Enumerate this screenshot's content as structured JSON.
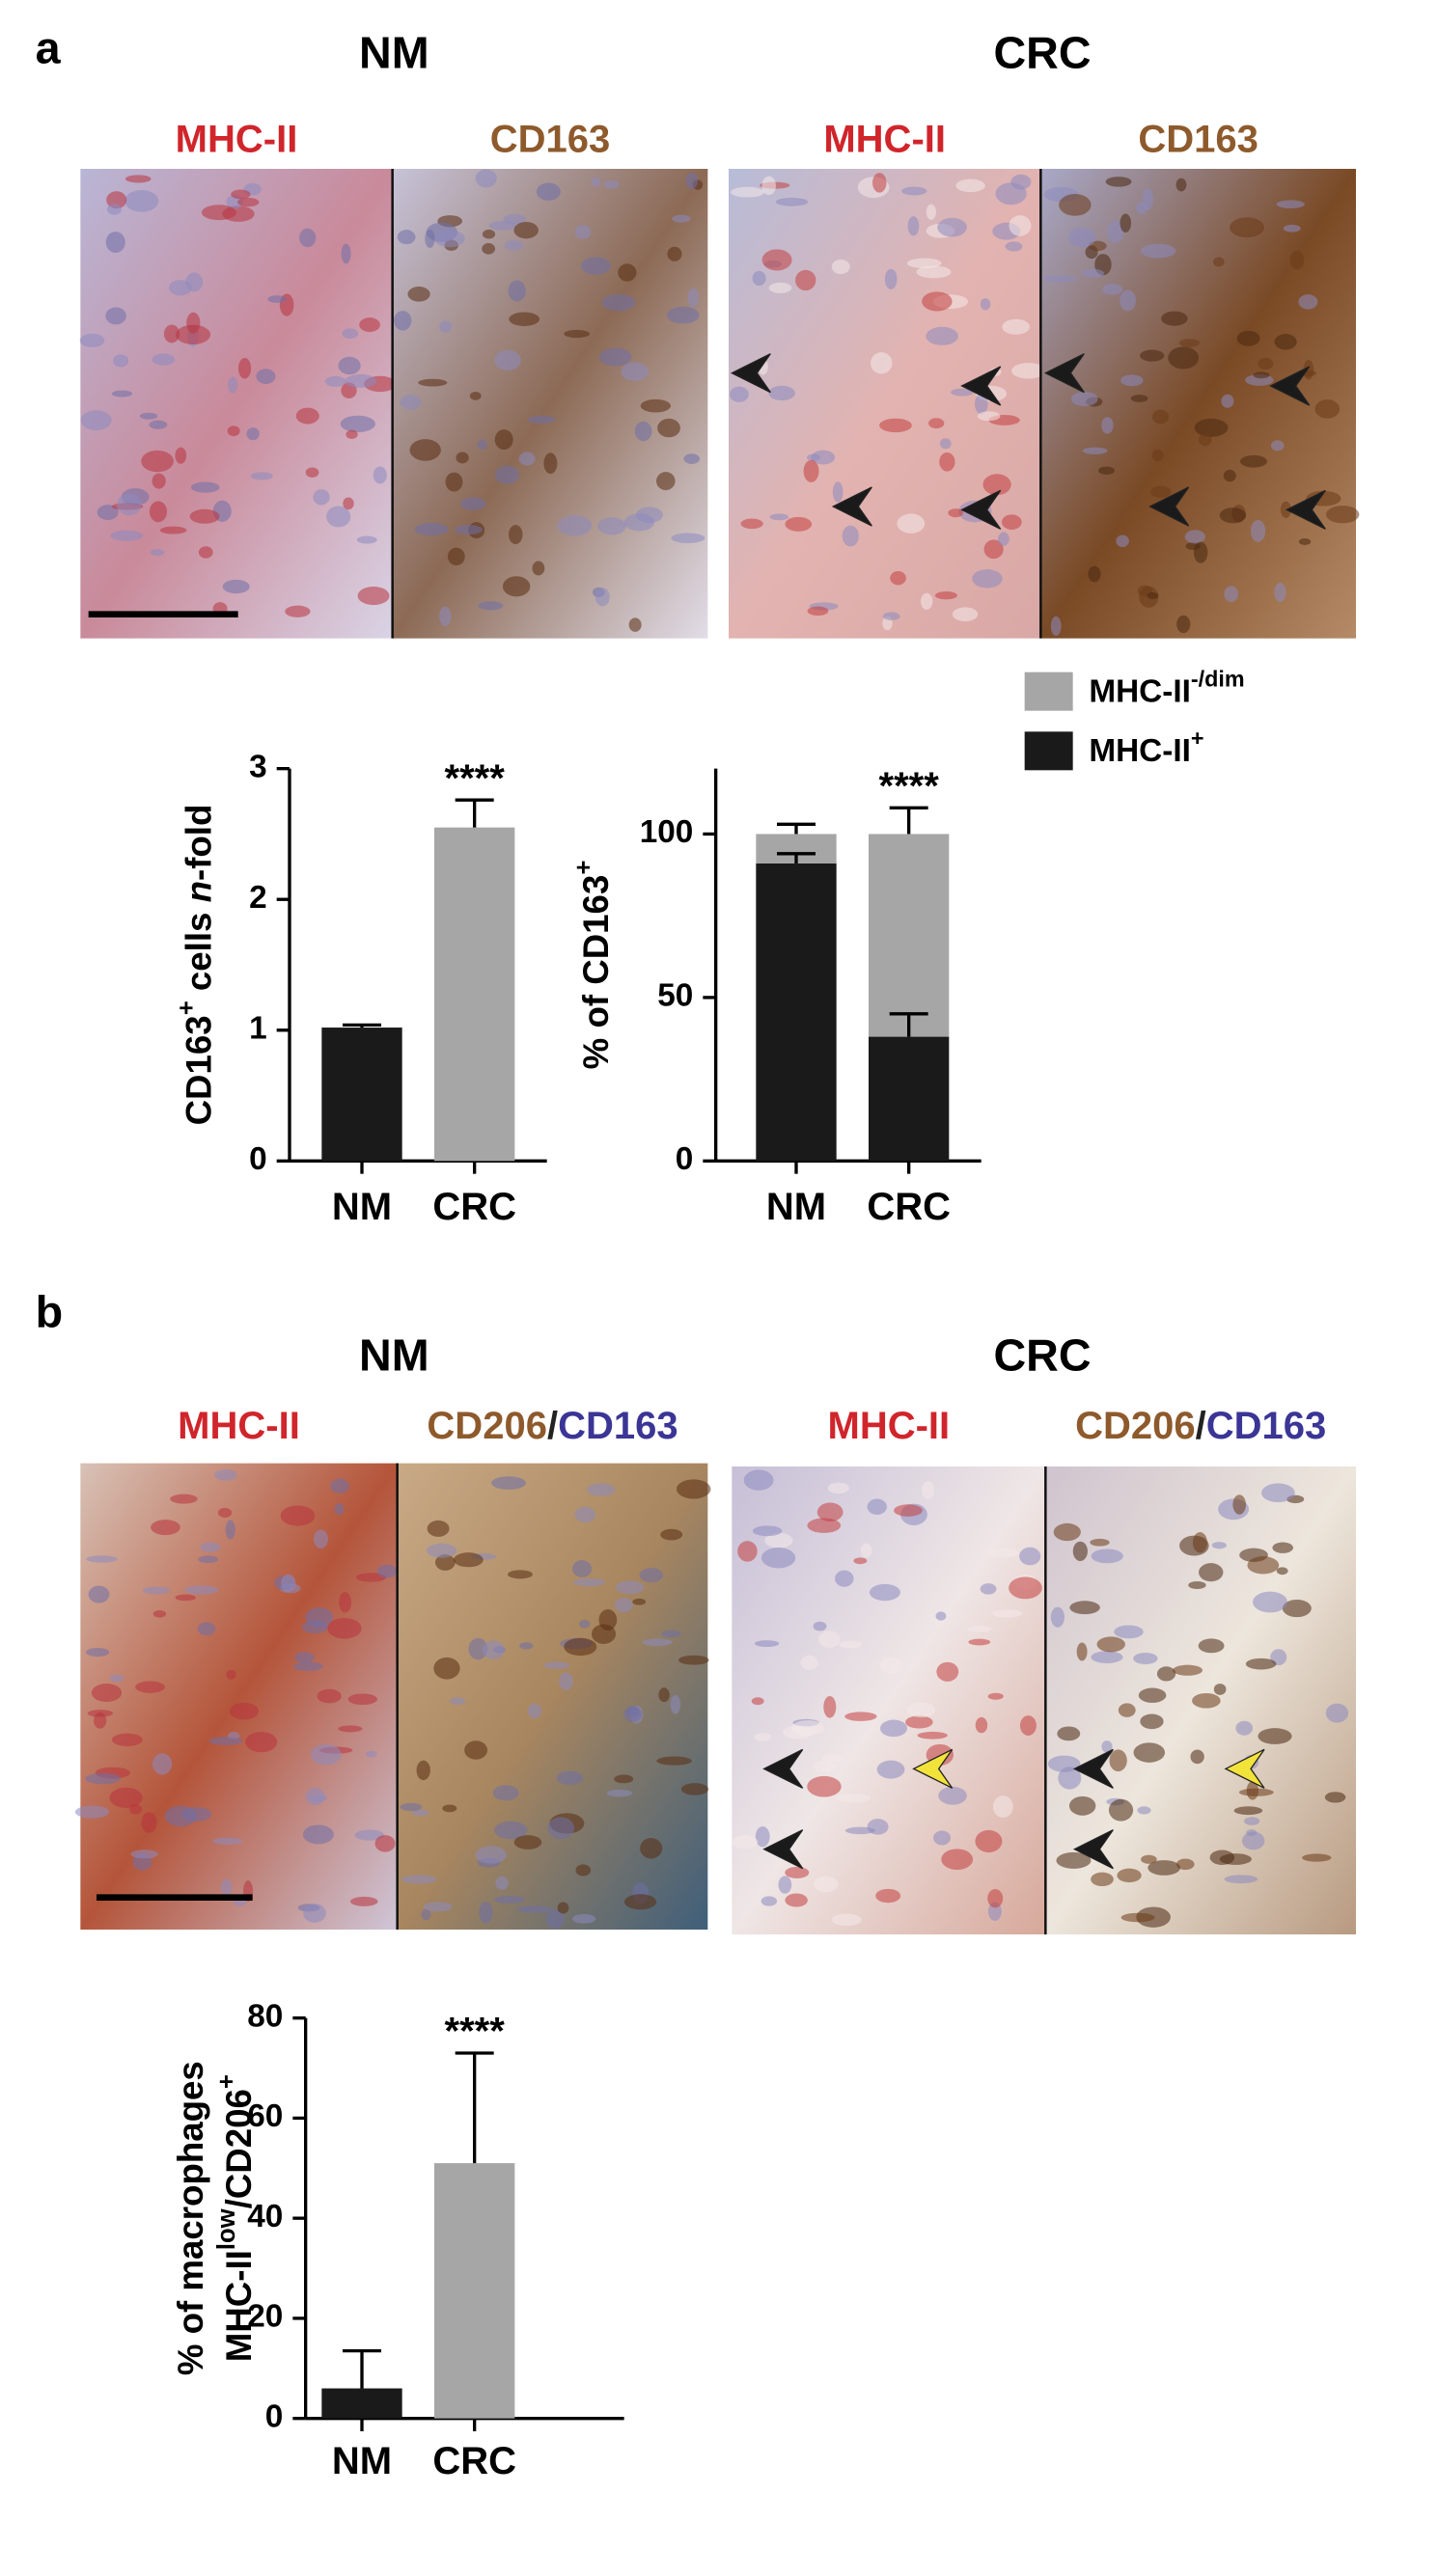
{
  "panels": [
    {
      "label": "a",
      "groups": [
        {
          "title": "NM",
          "stains": [
            [
              {
                "text": "MHC-II",
                "color": "#d0252b"
              }
            ],
            [
              {
                "text": "CD163",
                "color": "#8e5a2c"
              }
            ]
          ]
        },
        {
          "title": "CRC",
          "stains": [
            [
              {
                "text": "MHC-II",
                "color": "#d0252b"
              }
            ],
            [
              {
                "text": "CD163",
                "color": "#8e5a2c"
              }
            ]
          ]
        }
      ]
    },
    {
      "label": "b",
      "groups": [
        {
          "title": "NM",
          "stains": [
            [
              {
                "text": "MHC-II",
                "color": "#d0252b"
              }
            ],
            [
              {
                "text": "CD206",
                "color": "#8e5a2c"
              },
              {
                "text": "/",
                "color": "#222222"
              },
              {
                "text": "CD163",
                "color": "#3b3596"
              }
            ]
          ]
        },
        {
          "title": "CRC",
          "stains": [
            [
              {
                "text": "MHC-II",
                "color": "#d0252b"
              }
            ],
            [
              {
                "text": "CD206",
                "color": "#8e5a2c"
              },
              {
                "text": "/",
                "color": "#222222"
              },
              {
                "text": "CD163",
                "color": "#3b3596"
              }
            ]
          ]
        }
      ]
    }
  ],
  "chart_data": [
    {
      "type": "bar",
      "categories": [
        "NM",
        "CRC"
      ],
      "series": [
        {
          "colors": [
            "#1a1a1a",
            "#a6a6a6"
          ],
          "values": [
            1.02,
            2.55
          ],
          "errors": [
            0.02,
            0.21
          ]
        }
      ],
      "ylim": [
        0,
        3
      ],
      "yticks": [
        0,
        1,
        2,
        3
      ],
      "ylabel": [
        [
          {
            "text": "CD163"
          },
          {
            "text": "+",
            "style": "sup"
          },
          {
            "text": " cells "
          },
          {
            "text": "n",
            "style": "italic"
          },
          {
            "text": "-fold"
          }
        ]
      ],
      "annotations": [
        {
          "text": "****",
          "category": "CRC"
        }
      ]
    },
    {
      "type": "stacked-bar",
      "categories": [
        "NM",
        "CRC"
      ],
      "series": [
        {
          "name": "MHC-II",
          "name_sup": "+",
          "color": "#1a1a1a",
          "values": [
            91,
            38
          ],
          "errors": [
            3,
            7
          ]
        },
        {
          "name": "MHC-II",
          "name_sup": "-/dim",
          "color": "#a6a6a6",
          "values": [
            9,
            62
          ],
          "errors": [
            3,
            8
          ]
        }
      ],
      "ylim": [
        0,
        120
      ],
      "yticks": [
        0,
        50,
        100
      ],
      "ylabel": [
        [
          {
            "text": "% of CD163"
          },
          {
            "text": "+",
            "style": "sup"
          }
        ]
      ],
      "annotations": [
        {
          "text": "****",
          "category": "CRC"
        }
      ]
    },
    {
      "type": "bar",
      "categories": [
        "NM",
        "CRC"
      ],
      "series": [
        {
          "colors": [
            "#1a1a1a",
            "#a6a6a6"
          ],
          "values": [
            6,
            51
          ],
          "errors": [
            7.5,
            22
          ]
        }
      ],
      "ylim": [
        0,
        80
      ],
      "yticks": [
        0,
        20,
        40,
        60,
        80
      ],
      "ylabel": [
        [
          {
            "text": "% of macrophages"
          }
        ],
        [
          {
            "text": "MHC-II"
          },
          {
            "text": "low",
            "style": "sup"
          },
          {
            "text": "/CD206"
          },
          {
            "text": "+",
            "style": "sup"
          }
        ]
      ],
      "annotations": [
        {
          "text": "****",
          "category": "CRC"
        }
      ]
    }
  ]
}
